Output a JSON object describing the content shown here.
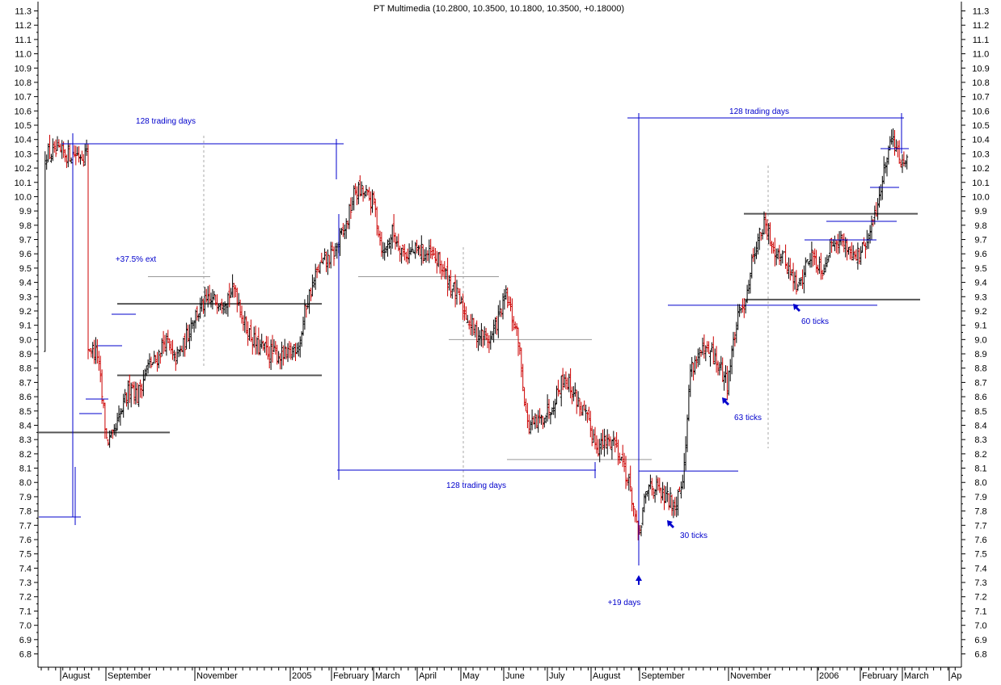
{
  "chart_data": {
    "type": "ohlc-bar",
    "title": "PT Multimedia (10.2800, 10.3500, 10.1800, 10.3500, +0.18000)",
    "ylim": [
      6.75,
      11.35
    ],
    "y_ticks": [
      6.8,
      6.9,
      7.0,
      7.1,
      7.2,
      7.3,
      7.4,
      7.5,
      7.6,
      7.7,
      7.8,
      7.9,
      8.0,
      8.1,
      8.2,
      8.3,
      8.4,
      8.5,
      8.6,
      8.7,
      8.8,
      8.9,
      9.0,
      9.1,
      9.2,
      9.3,
      9.4,
      9.5,
      9.6,
      9.7,
      9.8,
      9.9,
      10.0,
      10.1,
      10.2,
      10.3,
      10.4,
      10.5,
      10.6,
      10.7,
      10.8,
      10.9,
      11.0,
      11.1,
      11.2,
      11.3
    ],
    "x_labels": [
      "August",
      "September",
      "November",
      "2005",
      "February",
      "March",
      "April",
      "May",
      "June",
      "July",
      "August",
      "September",
      "November",
      "2006",
      "February",
      "March",
      "Ap"
    ],
    "colors": {
      "up": "#000000",
      "down": "#cc0000",
      "annotation": "#0000cc",
      "level": "#444444"
    },
    "annotations": [
      {
        "text": "128 trading days"
      },
      {
        "text": "+37.5% ext"
      },
      {
        "text": "128 trading days"
      },
      {
        "text": "128 trading days"
      },
      {
        "text": "+19 days"
      },
      {
        "text": "30 ticks"
      },
      {
        "text": "63 ticks"
      },
      {
        "text": "60 ticks"
      }
    ],
    "levels": [
      8.35,
      8.75,
      9.25,
      9.44,
      9.44,
      9.0,
      8.16,
      8.08,
      9.24,
      9.88,
      9.28
    ],
    "anchors": [
      {
        "x": 30,
        "y": 8.95
      },
      {
        "x": 36,
        "y": 8.9
      },
      {
        "x": 42,
        "y": 8.3
      },
      {
        "x": 46,
        "y": 8.3
      },
      {
        "x": 52,
        "y": 8.5
      },
      {
        "x": 58,
        "y": 8.7
      },
      {
        "x": 62,
        "y": 8.6
      },
      {
        "x": 68,
        "y": 8.8
      },
      {
        "x": 74,
        "y": 8.85
      },
      {
        "x": 80,
        "y": 9.0
      },
      {
        "x": 86,
        "y": 8.85
      },
      {
        "x": 92,
        "y": 8.95
      },
      {
        "x": 98,
        "y": 9.15
      },
      {
        "x": 106,
        "y": 9.25
      },
      {
        "x": 114,
        "y": 9.28
      },
      {
        "x": 120,
        "y": 9.3
      },
      {
        "x": 126,
        "y": 9.35
      },
      {
        "x": 132,
        "y": 9.1
      },
      {
        "x": 140,
        "y": 8.95
      },
      {
        "x": 150,
        "y": 8.9
      },
      {
        "x": 160,
        "y": 8.88
      },
      {
        "x": 168,
        "y": 9.0
      },
      {
        "x": 172,
        "y": 9.25
      },
      {
        "x": 180,
        "y": 9.5
      },
      {
        "x": 190,
        "y": 9.6
      },
      {
        "x": 198,
        "y": 9.8
      },
      {
        "x": 204,
        "y": 10.05
      },
      {
        "x": 210,
        "y": 10.02
      },
      {
        "x": 216,
        "y": 9.95
      },
      {
        "x": 222,
        "y": 9.6
      },
      {
        "x": 228,
        "y": 9.75
      },
      {
        "x": 236,
        "y": 9.6
      },
      {
        "x": 246,
        "y": 9.62
      },
      {
        "x": 258,
        "y": 9.55
      },
      {
        "x": 270,
        "y": 9.3
      },
      {
        "x": 282,
        "y": 9.05
      },
      {
        "x": 292,
        "y": 9.0
      },
      {
        "x": 302,
        "y": 9.3
      },
      {
        "x": 310,
        "y": 9.0
      },
      {
        "x": 316,
        "y": 8.4
      },
      {
        "x": 322,
        "y": 8.4
      },
      {
        "x": 332,
        "y": 8.55
      },
      {
        "x": 340,
        "y": 8.75
      },
      {
        "x": 352,
        "y": 8.5
      },
      {
        "x": 362,
        "y": 8.25
      },
      {
        "x": 372,
        "y": 8.3
      },
      {
        "x": 378,
        "y": 8.15
      },
      {
        "x": 384,
        "y": 7.9
      },
      {
        "x": 388,
        "y": 7.6
      },
      {
        "x": 392,
        "y": 7.85
      },
      {
        "x": 396,
        "y": 8.0
      },
      {
        "x": 404,
        "y": 7.9
      },
      {
        "x": 412,
        "y": 7.85
      },
      {
        "x": 418,
        "y": 8.1
      },
      {
        "x": 422,
        "y": 8.8
      },
      {
        "x": 428,
        "y": 8.9
      },
      {
        "x": 436,
        "y": 8.9
      },
      {
        "x": 446,
        "y": 8.7
      },
      {
        "x": 452,
        "y": 9.1
      },
      {
        "x": 458,
        "y": 9.3
      },
      {
        "x": 464,
        "y": 9.65
      },
      {
        "x": 470,
        "y": 9.8
      },
      {
        "x": 476,
        "y": 9.65
      },
      {
        "x": 484,
        "y": 9.55
      },
      {
        "x": 492,
        "y": 9.35
      },
      {
        "x": 500,
        "y": 9.6
      },
      {
        "x": 508,
        "y": 9.5
      },
      {
        "x": 516,
        "y": 9.72
      },
      {
        "x": 524,
        "y": 9.65
      },
      {
        "x": 532,
        "y": 9.58
      },
      {
        "x": 538,
        "y": 9.7
      },
      {
        "x": 544,
        "y": 9.95
      },
      {
        "x": 550,
        "y": 10.3
      },
      {
        "x": 554,
        "y": 10.45
      },
      {
        "x": 558,
        "y": 10.25
      },
      {
        "x": 562,
        "y": 10.3
      }
    ]
  }
}
